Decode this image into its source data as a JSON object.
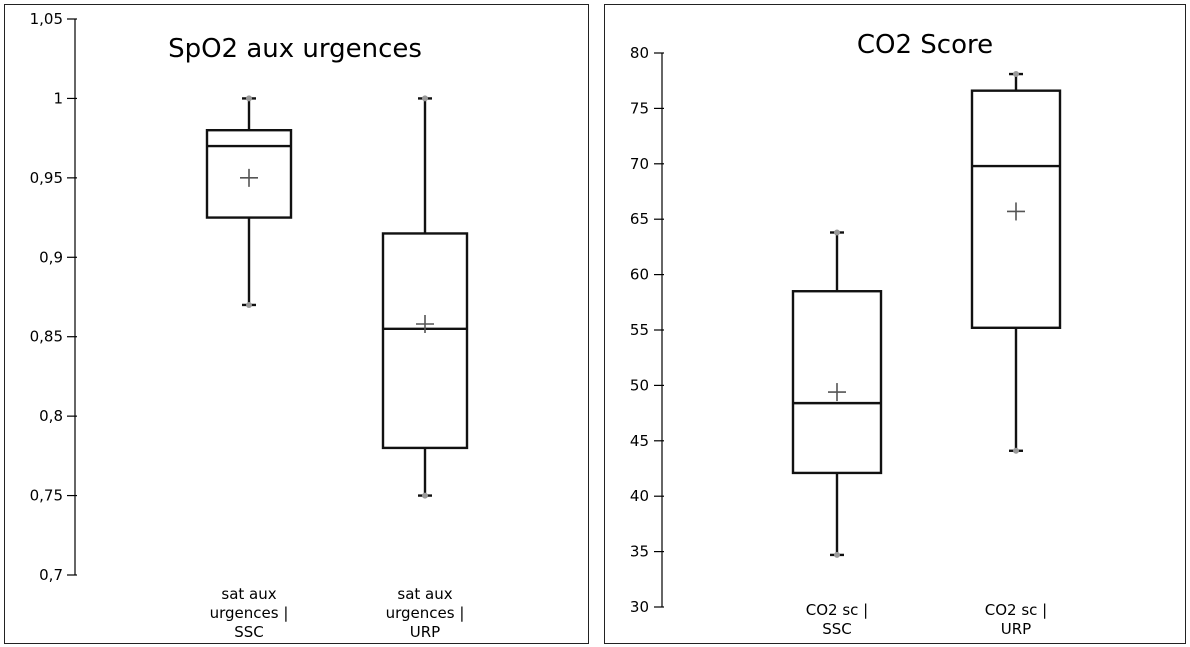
{
  "chart_data": [
    {
      "type": "box",
      "title": "SpO2 aux urgences",
      "ylim": [
        0.7,
        1.05
      ],
      "yticks": [
        0.7,
        0.75,
        0.8,
        0.85,
        0.9,
        0.95,
        1,
        1.05
      ],
      "ytick_labels": [
        "0,7",
        "0,75",
        "0,8",
        "0,85",
        "0,9",
        "0,95",
        "1",
        "1,05"
      ],
      "categories": [
        [
          "sat aux",
          "urgences |",
          "SSC"
        ],
        [
          "sat aux",
          "urgences |",
          "URP"
        ]
      ],
      "boxes": [
        {
          "min": 0.87,
          "q1": 0.925,
          "median": 0.97,
          "q3": 0.98,
          "max": 1.0,
          "mean": 0.95
        },
        {
          "min": 0.75,
          "q1": 0.78,
          "median": 0.855,
          "q3": 0.915,
          "max": 1.0,
          "mean": 0.858
        }
      ]
    },
    {
      "type": "box",
      "title": "CO2 Score",
      "ylim": [
        30,
        80
      ],
      "yticks": [
        30,
        35,
        40,
        45,
        50,
        55,
        60,
        65,
        70,
        75,
        80
      ],
      "ytick_labels": [
        "30",
        "35",
        "40",
        "45",
        "50",
        "55",
        "60",
        "65",
        "70",
        "75",
        "80"
      ],
      "categories": [
        [
          "CO2 sc |",
          "SSC"
        ],
        [
          "CO2 sc |",
          "URP"
        ]
      ],
      "boxes": [
        {
          "min": 34.7,
          "q1": 42.1,
          "median": 48.4,
          "q3": 58.5,
          "max": 63.8,
          "mean": 49.4
        },
        {
          "min": 44.1,
          "q1": 55.2,
          "median": 69.8,
          "q3": 76.6,
          "max": 78.1,
          "mean": 65.7
        }
      ]
    }
  ]
}
